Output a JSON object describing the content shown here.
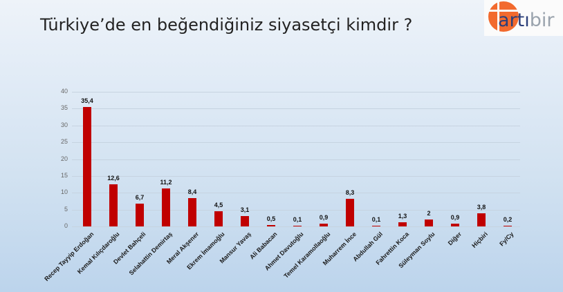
{
  "header": {
    "title": "Türkiye’de en beğendiğiniz siyasetçi kimdir ?",
    "logo": {
      "part1": "artı",
      "part2": "bir",
      "icon": "plus-circle-icon",
      "circle_color": "#f26a2e"
    }
  },
  "chart_data": {
    "type": "bar",
    "title": "Türkiye’de en beğendiğiniz siyasetçi kimdir ?",
    "xlabel": "",
    "ylabel": "",
    "ylim": [
      0,
      40
    ],
    "yticks": [
      "0",
      "5",
      "10",
      "15",
      "20",
      "25",
      "30",
      "35",
      "40"
    ],
    "grid": true,
    "legend": null,
    "bar_color": "#c00000",
    "categories": [
      "Recep Tayyip Erdoğan",
      "Kemal Kılıçdaroğlu",
      "Devlet Bahçeli",
      "Selahattin Demirtaş",
      "Meral Akşener",
      "Ekrem İmamoğlu",
      "Mansur Yavaş",
      "Ali Babacan",
      "Ahmet Davutoğlu",
      "Temel Karamollaoğlu",
      "Muharrem İnce",
      "Abdullah Gül",
      "Fahrettin Koca",
      "Süleyman Soylu",
      "Diğer",
      "Hiçbiri",
      "Fy/Cy"
    ],
    "values": [
      35.4,
      12.6,
      6.7,
      11.2,
      8.4,
      4.5,
      3.1,
      0.5,
      0.1,
      0.9,
      8.3,
      0.1,
      1.3,
      2,
      0.9,
      3.8,
      0.2
    ],
    "value_labels": [
      "35,4",
      "12,6",
      "6,7",
      "11,2",
      "8,4",
      "4,5",
      "3,1",
      "0,5",
      "0,1",
      "0,9",
      "8,3",
      "0,1",
      "1,3",
      "2",
      "0,9",
      "3,8",
      "0,2"
    ]
  }
}
